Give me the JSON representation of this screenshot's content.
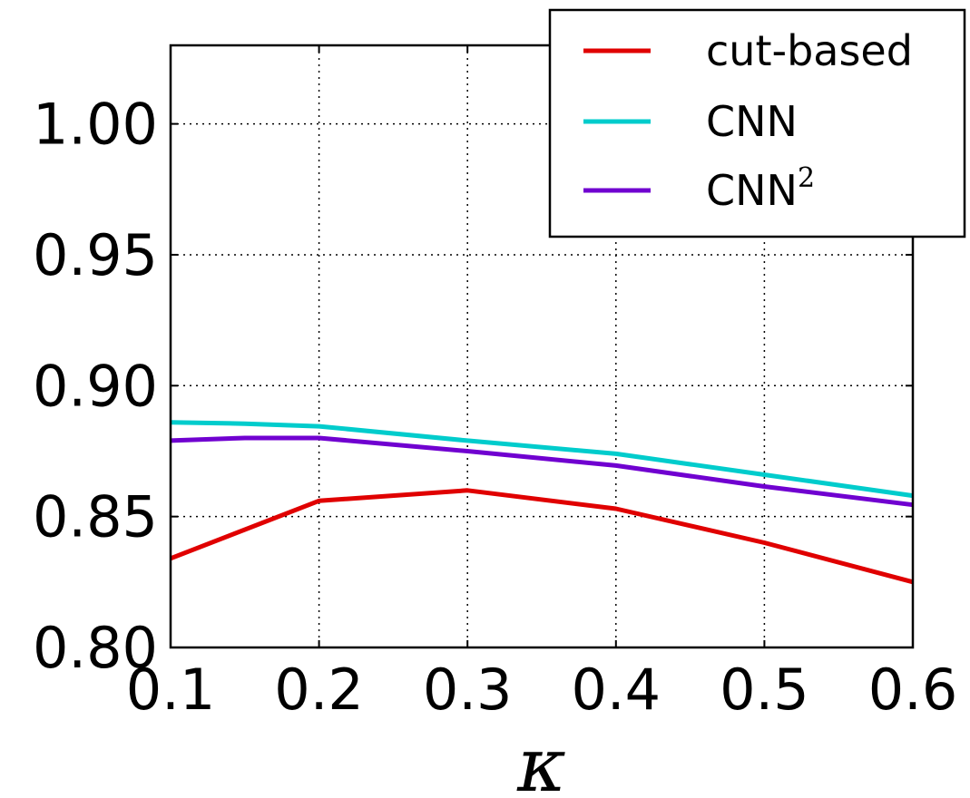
{
  "chart_data": {
    "type": "line",
    "title": "",
    "xlabel": "κ",
    "ylabel": "",
    "xlim": [
      0.1,
      0.6
    ],
    "ylim": [
      0.8,
      1.03
    ],
    "xticks": [
      0.1,
      0.2,
      0.3,
      0.4,
      0.5,
      0.6
    ],
    "xtick_labels": [
      "0.1",
      "0.2",
      "0.3",
      "0.4",
      "0.5",
      "0.6"
    ],
    "yticks": [
      0.8,
      0.85,
      0.9,
      0.95,
      1.0
    ],
    "ytick_labels": [
      "0.80",
      "0.85",
      "0.90",
      "0.95",
      "1.00"
    ],
    "grid": true,
    "legend_position": "top-right",
    "series": [
      {
        "name": "cut-based",
        "color": "#e00000",
        "x": [
          0.1,
          0.2,
          0.3,
          0.4,
          0.5,
          0.6
        ],
        "y": [
          0.834,
          0.856,
          0.86,
          0.853,
          0.84,
          0.825
        ]
      },
      {
        "name": "CNN",
        "name_sup": "",
        "color": "#00cccc",
        "x": [
          0.1,
          0.15,
          0.2,
          0.3,
          0.4,
          0.5,
          0.6
        ],
        "y": [
          0.886,
          0.8855,
          0.8845,
          0.879,
          0.874,
          0.866,
          0.858
        ]
      },
      {
        "name": "CNN",
        "name_sup": "2",
        "color": "#7000d0",
        "x": [
          0.1,
          0.15,
          0.2,
          0.3,
          0.4,
          0.5,
          0.6
        ],
        "y": [
          0.879,
          0.88,
          0.88,
          0.875,
          0.8695,
          0.8615,
          0.8545
        ]
      }
    ]
  }
}
